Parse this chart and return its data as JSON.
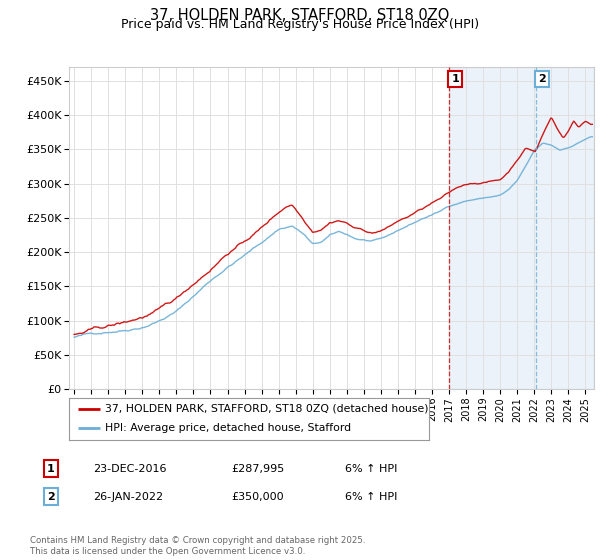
{
  "title": "37, HOLDEN PARK, STAFFORD, ST18 0ZQ",
  "subtitle": "Price paid vs. HM Land Registry's House Price Index (HPI)",
  "ylabel_ticks": [
    "£0",
    "£50K",
    "£100K",
    "£150K",
    "£200K",
    "£250K",
    "£300K",
    "£350K",
    "£400K",
    "£450K"
  ],
  "ytick_values": [
    0,
    50000,
    100000,
    150000,
    200000,
    250000,
    300000,
    350000,
    400000,
    450000
  ],
  "ylim": [
    0,
    470000
  ],
  "xlim_start": 1994.7,
  "xlim_end": 2025.5,
  "xtick_years": [
    1995,
    1996,
    1997,
    1998,
    1999,
    2000,
    2001,
    2002,
    2003,
    2004,
    2005,
    2006,
    2007,
    2008,
    2009,
    2010,
    2011,
    2012,
    2013,
    2014,
    2015,
    2016,
    2017,
    2018,
    2019,
    2020,
    2021,
    2022,
    2023,
    2024,
    2025
  ],
  "legend_line1": "37, HOLDEN PARK, STAFFORD, ST18 0ZQ (detached house)",
  "legend_line2": "HPI: Average price, detached house, Stafford",
  "line1_color": "#cc0000",
  "line2_color": "#6baed6",
  "shade_color": "#c6dbef",
  "marker1_date_x": 2016.98,
  "marker1_y": 287995,
  "marker2_date_x": 2022.07,
  "marker2_y": 350000,
  "table_data": [
    {
      "num": "1",
      "date": "23-DEC-2016",
      "price": "£287,995",
      "hpi": "6% ↑ HPI"
    },
    {
      "num": "2",
      "date": "26-JAN-2022",
      "price": "£350,000",
      "hpi": "6% ↑ HPI"
    }
  ],
  "footnote": "Contains HM Land Registry data © Crown copyright and database right 2025.\nThis data is licensed under the Open Government Licence v3.0.",
  "background_color": "#ffffff",
  "grid_color": "#e0e0e0",
  "title_fontsize": 10.5,
  "subtitle_fontsize": 9
}
